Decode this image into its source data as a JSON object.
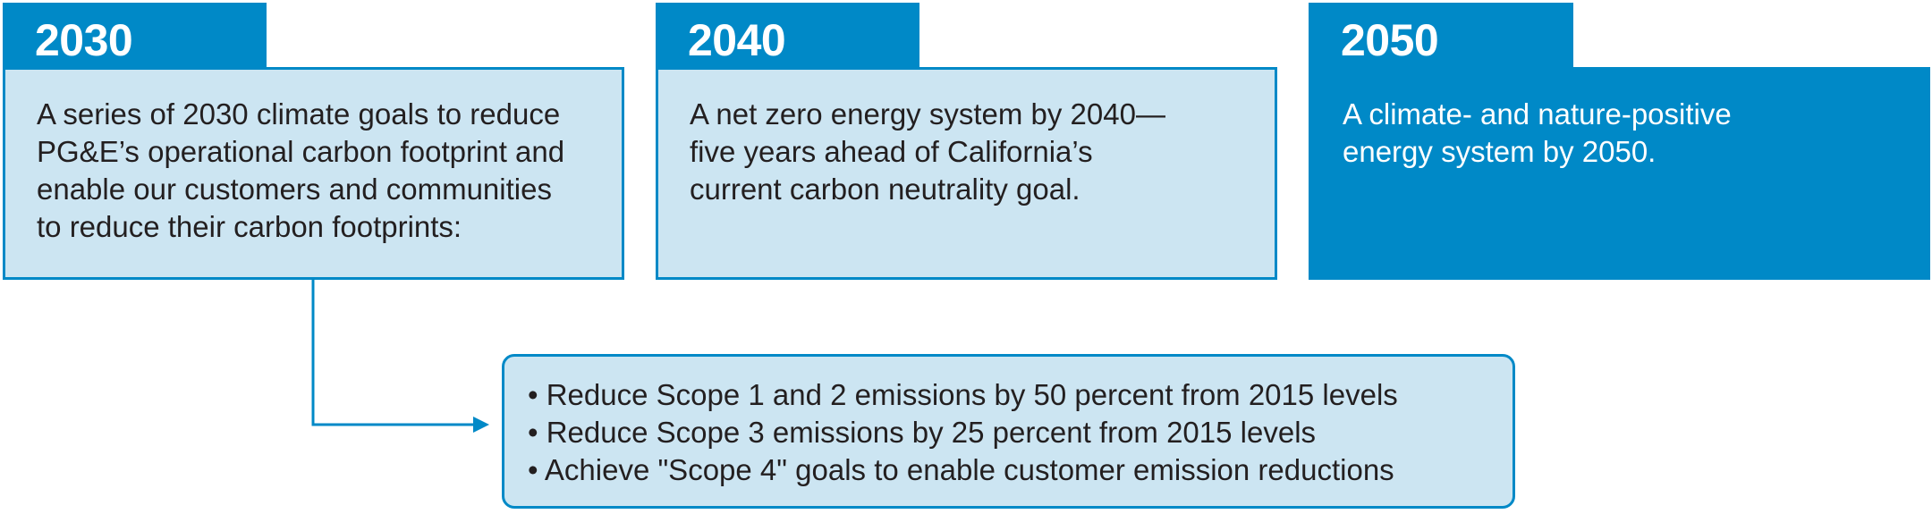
{
  "colors": {
    "accent": "#0089c7",
    "light_fill": "#cce5f2",
    "text_dark": "#231f20",
    "text_light": "#ffffff"
  },
  "milestones": [
    {
      "year": "2030",
      "text": "A series of 2030 climate goals to reduce\nPG&E’s operational carbon footprint and\nenable our customers and communities\nto reduce their carbon footprints:"
    },
    {
      "year": "2040",
      "text": "A net zero energy system by 2040—\nfive years ahead of California’s\ncurrent carbon neutrality goal."
    },
    {
      "year": "2050",
      "text": "A climate- and nature-positive\nenergy system by 2050."
    }
  ],
  "goals_2030": [
    "• Reduce Scope 1 and 2 emissions by 50 percent from 2015 levels",
    "• Reduce Scope 3 emissions by 25 percent from 2015 levels",
    "• Achieve \"Scope 4\" goals to enable customer emission reductions"
  ]
}
